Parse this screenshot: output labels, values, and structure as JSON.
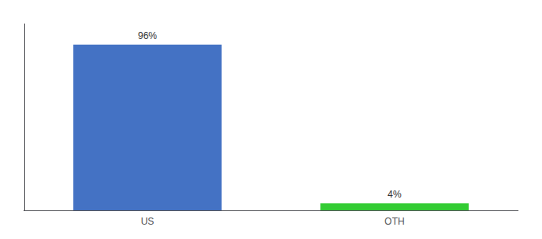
{
  "chart_data": {
    "type": "bar",
    "categories": [
      "US",
      "OTH"
    ],
    "values": [
      96,
      4
    ],
    "value_labels": [
      "96%",
      "4%"
    ],
    "colors": [
      "#4472c4",
      "#33cc33"
    ],
    "ylim": [
      0,
      108
    ],
    "yticks": [],
    "grid": false,
    "data_labels": true,
    "tick_labels": "x"
  }
}
